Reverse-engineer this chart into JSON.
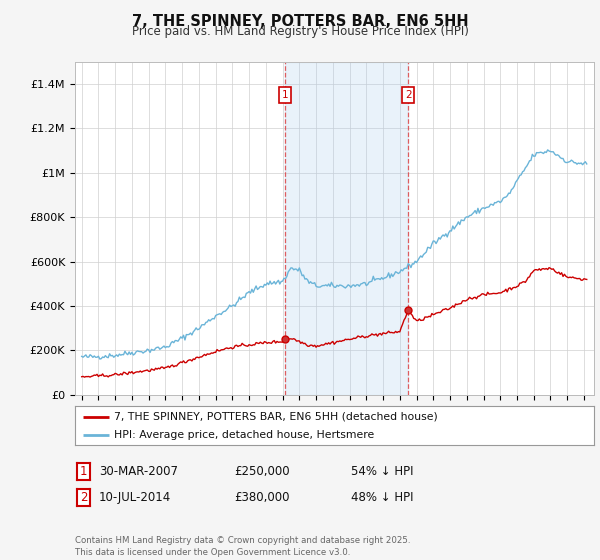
{
  "title": "7, THE SPINNEY, POTTERS BAR, EN6 5HH",
  "subtitle": "Price paid vs. HM Land Registry's House Price Index (HPI)",
  "ylabel_ticks": [
    "£0",
    "£200K",
    "£400K",
    "£600K",
    "£800K",
    "£1M",
    "£1.2M",
    "£1.4M"
  ],
  "ylim": [
    0,
    1500000
  ],
  "yticks": [
    0,
    200000,
    400000,
    600000,
    800000,
    1000000,
    1200000,
    1400000
  ],
  "hpi_color": "#6ab4d8",
  "price_color": "#cc0000",
  "vline_color": "#dd4444",
  "shade_color": "#ddeeff",
  "legend_label1": "7, THE SPINNEY, POTTERS BAR, EN6 5HH (detached house)",
  "legend_label2": "HPI: Average price, detached house, Hertsmere",
  "sale1_date": "30-MAR-2007",
  "sale1_price": "£250,000",
  "sale1_hpi": "54% ↓ HPI",
  "sale2_date": "10-JUL-2014",
  "sale2_price": "£380,000",
  "sale2_hpi": "48% ↓ HPI",
  "footer": "Contains HM Land Registry data © Crown copyright and database right 2025.\nThis data is licensed under the Open Government Licence v3.0.",
  "background_color": "#f5f5f5",
  "plot_bg_color": "#ffffff",
  "hpi_anchors_x": [
    0,
    12,
    24,
    36,
    48,
    60,
    72,
    84,
    96,
    108,
    120,
    132,
    144,
    150,
    156,
    162,
    168,
    180,
    192,
    204,
    216,
    228,
    240,
    252,
    264,
    276,
    288,
    300,
    306,
    312,
    318,
    324,
    336,
    348,
    360
  ],
  "hpi_anchors_y": [
    170000,
    172000,
    178000,
    190000,
    200000,
    215000,
    255000,
    300000,
    355000,
    400000,
    460000,
    500000,
    510000,
    570000,
    560000,
    510000,
    490000,
    490000,
    490000,
    500000,
    525000,
    555000,
    600000,
    680000,
    740000,
    800000,
    840000,
    870000,
    900000,
    960000,
    1020000,
    1080000,
    1100000,
    1050000,
    1040000
  ],
  "price_anchors_x": [
    0,
    12,
    24,
    36,
    48,
    60,
    72,
    84,
    96,
    108,
    120,
    132,
    144,
    150,
    156,
    162,
    168,
    180,
    192,
    204,
    216,
    228,
    234,
    240,
    252,
    264,
    276,
    288,
    300,
    312,
    318,
    324,
    336,
    348,
    360
  ],
  "price_anchors_y": [
    80000,
    85000,
    90000,
    100000,
    110000,
    120000,
    145000,
    170000,
    195000,
    215000,
    225000,
    235000,
    240000,
    255000,
    240000,
    225000,
    220000,
    235000,
    250000,
    265000,
    275000,
    285000,
    380000,
    330000,
    360000,
    390000,
    430000,
    450000,
    460000,
    490000,
    510000,
    560000,
    570000,
    530000,
    520000
  ]
}
